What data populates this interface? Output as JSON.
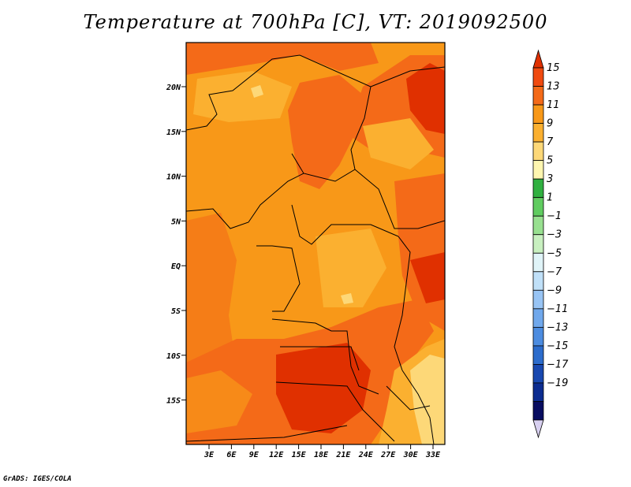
{
  "title": "Temperature at 700hPa [C], VT: 2019092500",
  "credit": "GrADS: IGES/COLA",
  "map": {
    "lat_ticks": [
      "20N",
      "15N",
      "10N",
      "5N",
      "EQ",
      "5S",
      "10S",
      "15S"
    ],
    "lon_ticks": [
      "3E",
      "6E",
      "9E",
      "12E",
      "15E",
      "18E",
      "21E",
      "24E",
      "27E",
      "30E",
      "33E"
    ]
  },
  "colorbar": {
    "labels": [
      "15",
      "13",
      "11",
      "9",
      "7",
      "5",
      "3",
      "1",
      "−1",
      "−3",
      "−5",
      "−7",
      "−9",
      "−11",
      "−13",
      "−15",
      "−17",
      "−19"
    ],
    "colors": [
      "#e03000",
      "#f04a10",
      "#f46a18",
      "#f89818",
      "#fbb030",
      "#fdd878",
      "#fef6b0",
      "#30b040",
      "#60cc60",
      "#98e090",
      "#c8f0c0",
      "#e0f4f8",
      "#c0e0f8",
      "#98c4f4",
      "#70a8ec",
      "#4c8ce0",
      "#2c6ccc",
      "#1848b0",
      "#0c2c90",
      "#080c60",
      "#d8d0f0"
    ]
  }
}
